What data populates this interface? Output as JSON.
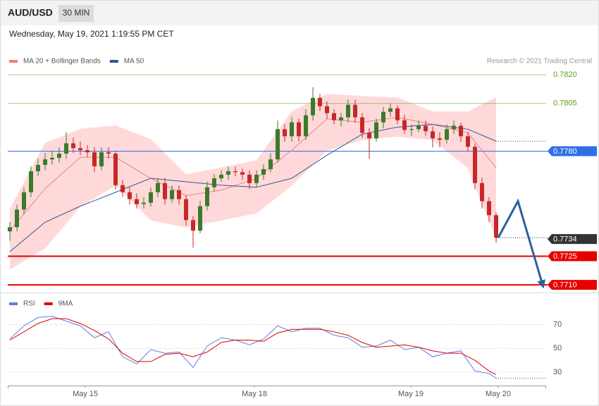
{
  "header": {
    "symbol": "AUD/USD",
    "timeframe": "30 MIN",
    "timestamp": "Wednesday, May 19, 2021 1:19:55 PM CET"
  },
  "chart_data": [
    {
      "type": "candlestick",
      "annotation": "Research © 2021 Trading Central",
      "xlim": [
        -0.3,
        76.1
      ],
      "ylim": [
        0.7706,
        0.7837
      ],
      "up_color": "#3b7a2a",
      "down_color": "#c62828",
      "open": [
        0.7738,
        0.77402,
        0.77494,
        0.77585,
        0.77695,
        0.77728,
        0.77757,
        0.77765,
        0.77787,
        0.77841,
        0.77816,
        0.77805,
        0.77794,
        0.77721,
        0.77794,
        0.77787,
        0.77622,
        0.77585,
        0.77549,
        0.77523,
        0.7753,
        0.77585,
        0.77633,
        0.77549,
        0.77596,
        0.77549,
        0.77439,
        0.77384,
        0.77512,
        0.77611,
        0.77658,
        0.77677,
        0.77695,
        0.7769,
        0.77677,
        0.77633,
        0.77677,
        0.77706,
        0.77757,
        0.77915,
        0.77878,
        0.77951,
        0.77878,
        0.77988,
        0.78079,
        0.78035,
        0.77999,
        0.77962,
        0.77977,
        0.78043,
        0.77977,
        0.77896,
        0.77867,
        0.77951,
        0.78006,
        0.78024,
        0.77962,
        0.77911,
        0.77915,
        0.77933,
        0.77904,
        0.77867,
        0.7786,
        0.77915,
        0.77933,
        0.77878,
        0.77823,
        0.77633,
        0.77538,
        0.77465
      ],
      "high": [
        0.7743,
        0.7752,
        0.7761,
        0.7772,
        0.7776,
        0.7779,
        0.778,
        0.7782,
        0.779,
        0.7787,
        0.7785,
        0.7783,
        0.7782,
        0.7782,
        0.7782,
        0.778,
        0.7765,
        0.7761,
        0.7758,
        0.7756,
        0.7761,
        0.7766,
        0.7766,
        0.7762,
        0.7762,
        0.7757,
        0.7746,
        0.7754,
        0.7764,
        0.7768,
        0.777,
        0.7772,
        0.7772,
        0.7771,
        0.777,
        0.777,
        0.7773,
        0.7779,
        0.7796,
        0.7794,
        0.7798,
        0.7797,
        0.7802,
        0.78135,
        0.781,
        0.7806,
        0.7802,
        0.78,
        0.7807,
        0.7807,
        0.78,
        0.7792,
        0.7797,
        0.7803,
        0.7805,
        0.7804,
        0.7799,
        0.7794,
        0.7796,
        0.7796,
        0.7793,
        0.779,
        0.7794,
        0.7796,
        0.7795,
        0.779,
        0.7784,
        0.7766,
        0.7756,
        0.7748
      ],
      "low": [
        0.7733,
        0.7738,
        0.7747,
        0.7756,
        0.7767,
        0.777,
        0.7773,
        0.7774,
        0.7776,
        0.7779,
        0.7778,
        0.7777,
        0.7769,
        0.777,
        0.7776,
        0.776,
        0.7756,
        0.7752,
        0.775,
        0.775,
        0.7751,
        0.7756,
        0.7752,
        0.7753,
        0.7752,
        0.7741,
        0.77295,
        0.7737,
        0.7749,
        0.7759,
        0.7764,
        0.7765,
        0.7767,
        0.7765,
        0.776,
        0.7761,
        0.7765,
        0.7769,
        0.7774,
        0.7785,
        0.7785,
        0.7785,
        0.7786,
        0.7796,
        0.7801,
        0.7797,
        0.7794,
        0.7793,
        0.7795,
        0.7795,
        0.7787,
        0.7776,
        0.7785,
        0.7792,
        0.7798,
        0.7794,
        0.7789,
        0.7788,
        0.779,
        0.7788,
        0.7782,
        0.7782,
        0.7784,
        0.7789,
        0.7785,
        0.778,
        0.776,
        0.775,
        0.7743,
        0.7732
      ],
      "close": [
        0.77402,
        0.77494,
        0.77585,
        0.77695,
        0.77728,
        0.77757,
        0.77765,
        0.77787,
        0.77841,
        0.77816,
        0.77805,
        0.77794,
        0.77721,
        0.77794,
        0.77787,
        0.77622,
        0.77585,
        0.77549,
        0.77523,
        0.7753,
        0.77585,
        0.77633,
        0.77549,
        0.77596,
        0.77549,
        0.77439,
        0.77384,
        0.77512,
        0.77611,
        0.77658,
        0.77677,
        0.77695,
        0.7769,
        0.77677,
        0.77633,
        0.77677,
        0.77706,
        0.77757,
        0.77915,
        0.77878,
        0.77951,
        0.77878,
        0.77988,
        0.78079,
        0.78035,
        0.77999,
        0.77962,
        0.77977,
        0.78043,
        0.77977,
        0.77896,
        0.77867,
        0.77951,
        0.78006,
        0.78024,
        0.77962,
        0.77911,
        0.77915,
        0.77933,
        0.77904,
        0.77867,
        0.7786,
        0.77915,
        0.77933,
        0.77878,
        0.77823,
        0.77633,
        0.77538,
        0.77465,
        0.77347
      ],
      "series": [
        {
          "name": "MA 20 + Bollinger Bands",
          "color": "#f08080",
          "band_color": "#ffd9d9",
          "x": [
            0,
            5,
            10,
            15,
            20,
            25,
            30,
            35,
            40,
            45,
            50,
            55,
            60,
            65,
            69
          ],
          "values": [
            0.77384,
            0.77604,
            0.77768,
            0.77768,
            0.77658,
            0.77567,
            0.77596,
            0.77658,
            0.77805,
            0.77969,
            0.77951,
            0.77977,
            0.7794,
            0.77896,
            0.77713
          ],
          "upper": [
            0.77494,
            0.77841,
            0.77915,
            0.77933,
            0.7786,
            0.77677,
            0.77713,
            0.7775,
            0.78006,
            0.78098,
            0.78087,
            0.78079,
            0.78006,
            0.78006,
            0.78079
          ],
          "lower": [
            0.77183,
            0.77293,
            0.77512,
            0.77622,
            0.77439,
            0.77402,
            0.77439,
            0.77476,
            0.77622,
            0.77805,
            0.7786,
            0.77878,
            0.7786,
            0.77713,
            0.77347
          ]
        },
        {
          "name": "MA 50",
          "color": "#2f5597",
          "x": [
            0,
            5,
            10,
            15,
            20,
            25,
            30,
            35,
            40,
            45,
            50,
            55,
            60,
            65,
            69
          ],
          "values": [
            0.77274,
            0.77428,
            0.77512,
            0.77585,
            0.77658,
            0.7764,
            0.77622,
            0.77611,
            0.77658,
            0.77779,
            0.77889,
            0.77926,
            0.7794,
            0.77915,
            0.77852
          ]
        }
      ],
      "levels": [
        {
          "value": 0.782,
          "label": "0.7820",
          "color": "#5a9e1a",
          "line": true,
          "box": false
        },
        {
          "value": 0.7805,
          "label": "0.7805",
          "color": "#5a9e1a",
          "line": true,
          "box": false
        },
        {
          "value": 0.778,
          "label": "0.7780",
          "color": "#2f6fe8",
          "line": true,
          "box": true
        },
        {
          "value": 0.7734,
          "label": "0.7734",
          "color": "#333333",
          "line": false,
          "box": true
        },
        {
          "value": 0.7725,
          "label": "0.7725",
          "color": "#e60000",
          "line": true,
          "box": true
        },
        {
          "value": 0.771,
          "label": "0.7710",
          "color": "#e60000",
          "line": true,
          "box": true
        }
      ],
      "forecast": {
        "color": "#2e5f9e",
        "x": [
          69.3,
          72.1,
          75.6
        ],
        "values": [
          0.77347,
          0.77538,
          0.771
        ]
      }
    },
    {
      "type": "line",
      "xlim": [
        -0.3,
        76.1
      ],
      "ylim": [
        20,
        94
      ],
      "yticks": [
        70,
        50,
        30
      ],
      "grid": true,
      "xticks": [
        {
          "value": 10.7,
          "label": "May 15"
        },
        {
          "value": 34.7,
          "label": "May 18"
        },
        {
          "value": 56.9,
          "label": "May 19"
        },
        {
          "value": 69.3,
          "label": "May 20"
        }
      ],
      "x": [
        0,
        2,
        4,
        6,
        8,
        10,
        12,
        14,
        16,
        18,
        20,
        22,
        24,
        26,
        28,
        30,
        32,
        34,
        36,
        38,
        40,
        42,
        44,
        46,
        48,
        50,
        52,
        54,
        56,
        58,
        60,
        62,
        64,
        66,
        68,
        69
      ],
      "series": [
        {
          "name": "RSI",
          "color": "#5b7fde",
          "values": [
            58,
            69,
            76,
            77,
            73,
            69,
            59,
            64,
            43,
            37,
            49,
            46,
            47,
            34,
            52,
            59,
            57,
            53,
            58,
            69,
            64,
            67,
            67,
            61,
            59,
            51,
            52,
            57,
            49,
            51,
            43,
            46,
            48,
            31,
            29,
            25
          ]
        },
        {
          "name": "9MA",
          "color": "#e00000",
          "values": [
            57,
            64,
            71,
            75,
            75,
            71,
            65,
            58,
            46,
            39,
            39,
            45,
            46,
            43,
            47,
            55,
            57,
            57,
            56,
            63,
            66,
            66,
            66,
            64,
            61,
            55,
            51,
            52,
            53,
            51,
            48,
            46,
            46,
            40,
            31,
            28
          ]
        }
      ]
    }
  ]
}
